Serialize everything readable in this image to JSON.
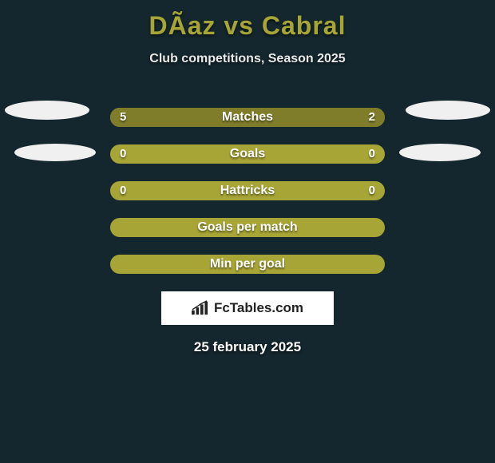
{
  "title": "DÃ­az vs Cabral",
  "subtitle": "Club competitions, Season 2025",
  "date": "25 february 2025",
  "logo_text": "FcTables.com",
  "colors": {
    "background": "#14272e",
    "title": "#a8a537",
    "text": "#ffffff",
    "bar_track": "#a8a537",
    "bar_fill": "#7f7d29",
    "ellipse": "#f0f0f0",
    "logo_bg": "#ffffff",
    "logo_text": "#222222"
  },
  "rows": [
    {
      "label": "Matches",
      "left": "5",
      "right": "2",
      "left_pct": 70,
      "right_pct": 30
    },
    {
      "label": "Goals",
      "left": "0",
      "right": "0",
      "left_pct": 0,
      "right_pct": 0
    },
    {
      "label": "Hattricks",
      "left": "0",
      "right": "0",
      "left_pct": 0,
      "right_pct": 0
    },
    {
      "label": "Goals per match",
      "left": "",
      "right": "",
      "left_pct": 0,
      "right_pct": 0
    },
    {
      "label": "Min per goal",
      "left": "",
      "right": "",
      "left_pct": 0,
      "right_pct": 0
    }
  ]
}
